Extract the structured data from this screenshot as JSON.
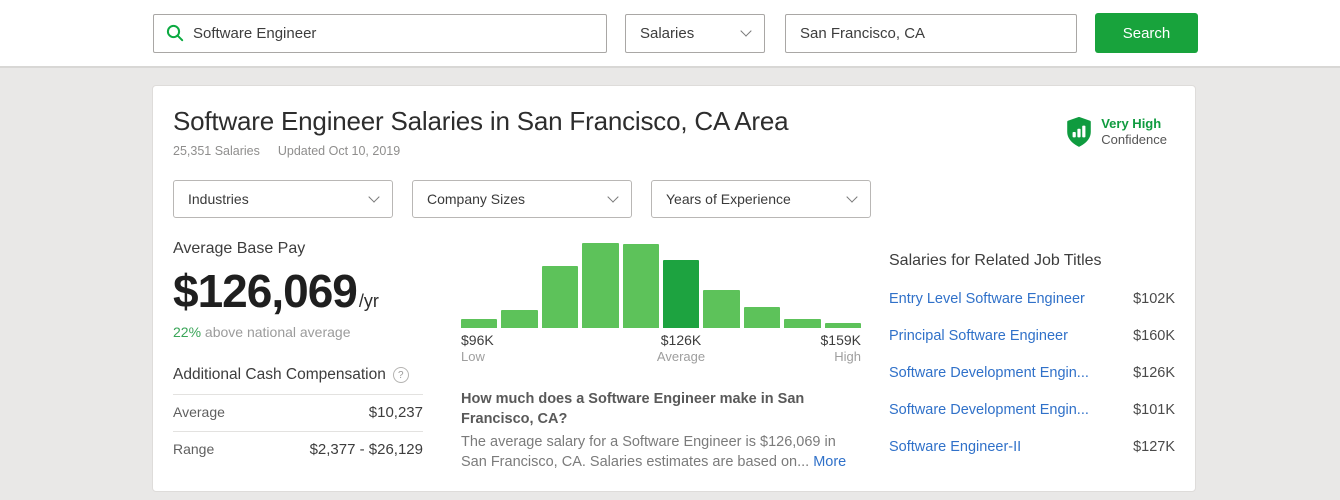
{
  "topbar": {
    "search_value": "Software Engineer",
    "category_value": "Salaries",
    "location_value": "San Francisco, CA",
    "search_button": "Search"
  },
  "header": {
    "title": "Software Engineer Salaries in San Francisco, CA Area",
    "salaries_count": "25,351 Salaries",
    "updated": "Updated Oct 10, 2019",
    "confidence": {
      "level": "Very High",
      "label": "Confidence"
    }
  },
  "filters": [
    {
      "label": "Industries"
    },
    {
      "label": "Company Sizes"
    },
    {
      "label": "Years of Experience"
    }
  ],
  "base_pay": {
    "label": "Average Base Pay",
    "amount": "$126,069",
    "period": "/yr",
    "comparison_pct": "22%",
    "comparison_text": " above national average"
  },
  "additional_comp": {
    "title": "Additional Cash Compensation",
    "help_icon": "?",
    "rows": [
      {
        "label": "Average",
        "value": "$10,237"
      },
      {
        "label": "Range",
        "value": "$2,377 - $26,129"
      }
    ]
  },
  "chart_data": {
    "type": "bar",
    "title": "Salary distribution histogram",
    "values": [
      9,
      18,
      62,
      85,
      84,
      68,
      38,
      21,
      9,
      5
    ],
    "highlight_index": 5,
    "x_low": "$96K",
    "x_average": "$126K",
    "x_high": "$159K",
    "labels": {
      "low_value": "$96K",
      "low_caption": "Low",
      "avg_value": "$126K",
      "avg_caption": "Average",
      "high_value": "$159K",
      "high_caption": "High"
    },
    "colors": {
      "bar": "#5dc25a",
      "highlight": "#1da340"
    }
  },
  "about": {
    "question": "How much does a Software Engineer make in San Francisco, CA?",
    "answer": "The average salary for a Software Engineer is $126,069 in San Francisco, CA. Salaries estimates are based on... ",
    "more_link": "More"
  },
  "related": {
    "title": "Salaries for Related Job Titles",
    "items": [
      {
        "title": "Entry Level Software Engineer",
        "salary": "$102K"
      },
      {
        "title": "Principal Software Engineer",
        "salary": "$160K"
      },
      {
        "title": "Software Development Engin...",
        "salary": "$126K"
      },
      {
        "title": "Software Development Engin...",
        "salary": "$101K"
      },
      {
        "title": "Software Engineer-II",
        "salary": "$127K"
      }
    ]
  },
  "colors": {
    "brand_green": "#18a33c",
    "link_blue": "#3071c9",
    "confidence_green": "#0f9b3f"
  }
}
